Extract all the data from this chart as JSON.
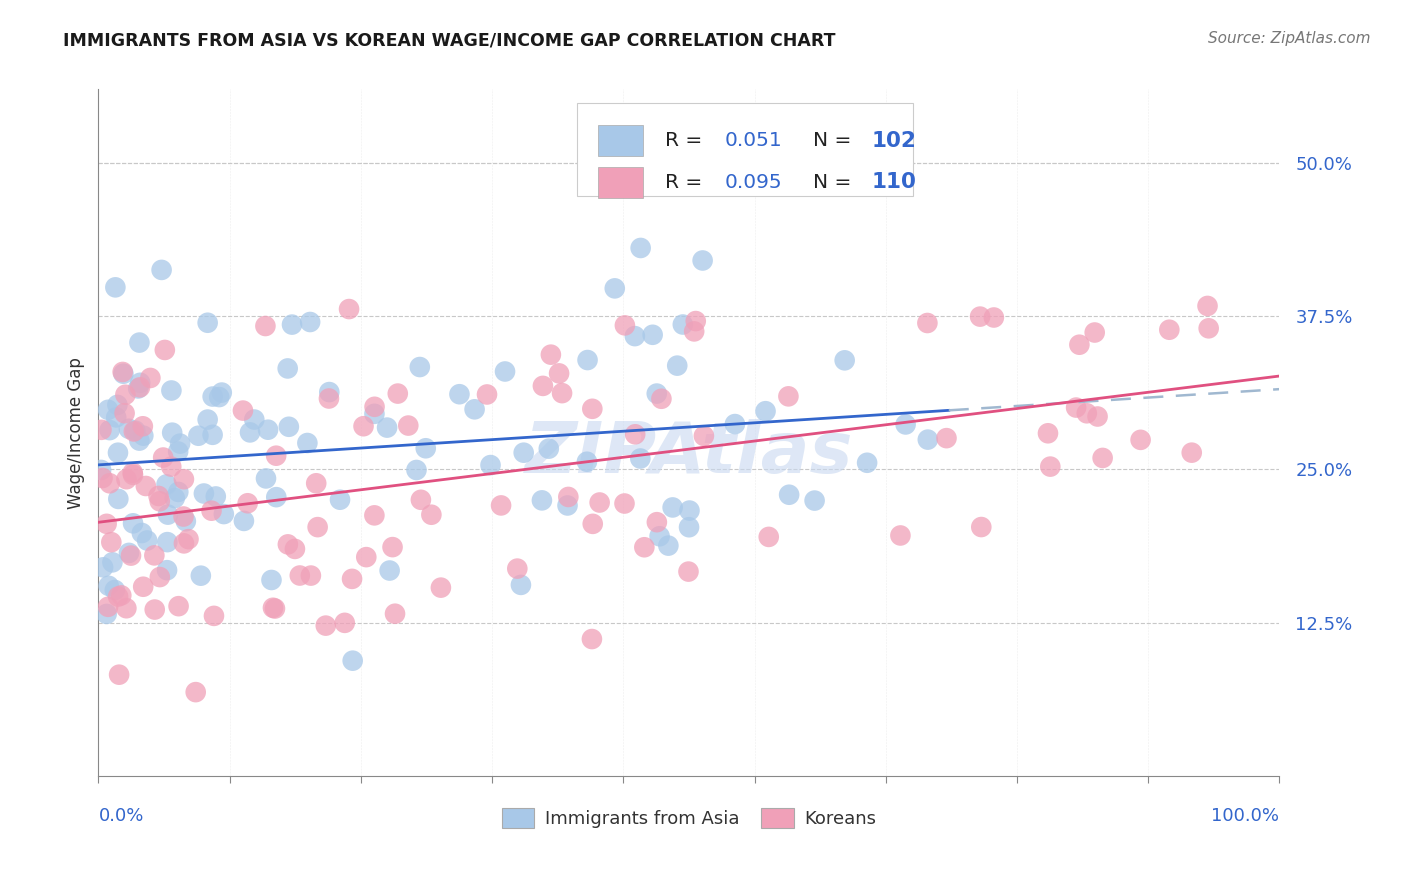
{
  "title": "IMMIGRANTS FROM ASIA VS KOREAN WAGE/INCOME GAP CORRELATION CHART",
  "source": "Source: ZipAtlas.com",
  "ylabel": "Wage/Income Gap",
  "ytick_values": [
    0.125,
    0.25,
    0.375,
    0.5
  ],
  "ytick_labels": [
    "12.5%",
    "25.0%",
    "37.5%",
    "50.0%"
  ],
  "xlim": [
    0,
    1
  ],
  "ylim": [
    0,
    0.56
  ],
  "legend_r_blue": "0.051",
  "legend_n_blue": "102",
  "legend_r_pink": "0.095",
  "legend_n_pink": "110",
  "blue_color": "#a8c8e8",
  "pink_color": "#f0a0b8",
  "blue_line_color": "#3366cc",
  "pink_line_color": "#e05080",
  "dashed_line_color": "#a0b8d0",
  "watermark": "ZIPAtlas",
  "watermark_color": "#c8d8f0",
  "blue_cutoff": 0.72,
  "blue_line_start_y": 0.285,
  "blue_line_end_y": 0.295,
  "blue_line_dashed_end_y": 0.3,
  "pink_line_start_y": 0.215,
  "pink_line_end_y": 0.275
}
